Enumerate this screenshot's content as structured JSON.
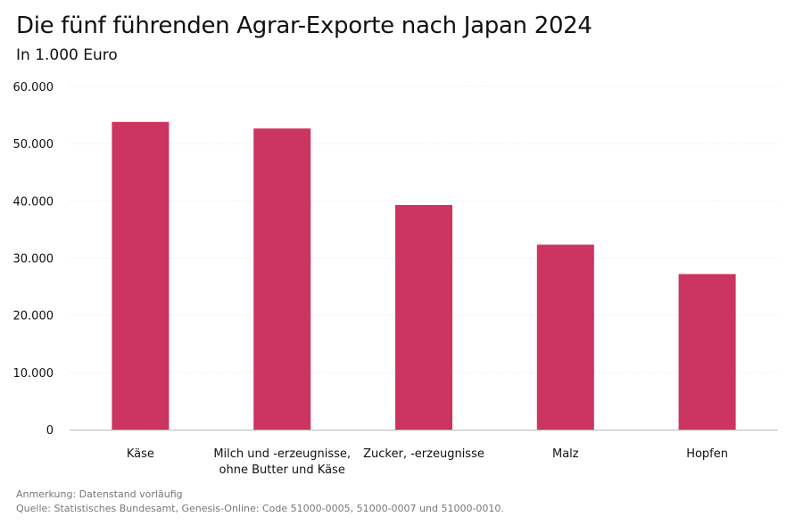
{
  "title": "Die fünf führenden Agrar-Exporte nach Japan 2024",
  "subtitle": "In 1.000 Euro",
  "footer": {
    "note": "Anmerkung: Datenstand vorläufig",
    "source": "Quelle: Statistisches Bundesamt, Genesis-Online: Code 51000-0005, 51000-0007 und 51000-0010."
  },
  "chart_data": {
    "type": "bar",
    "title": "Die fünf führenden Agrar-Exporte nach Japan 2024",
    "subtitle": "In 1.000 Euro",
    "categories": [
      [
        "Käse"
      ],
      [
        "Milch und -erzeugnisse,",
        "ohne Butter und Käse"
      ],
      [
        "Zucker, -erzeugnisse"
      ],
      [
        "Malz"
      ],
      [
        "Hopfen"
      ]
    ],
    "values": [
      53800,
      52650,
      39270,
      32340,
      27200
    ],
    "ylim": [
      0,
      60000
    ],
    "yticks": [
      0,
      10000,
      20000,
      30000,
      40000,
      50000,
      60000
    ],
    "ytick_labels": [
      "0",
      "10.000",
      "20.000",
      "30.000",
      "40.000",
      "50.000",
      "60.000"
    ],
    "grid": true,
    "color": "#cc3462"
  }
}
